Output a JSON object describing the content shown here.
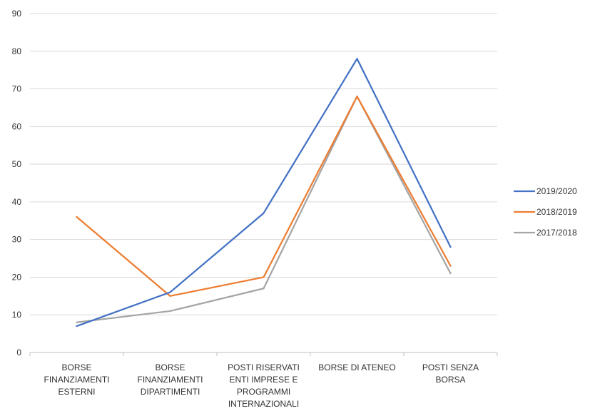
{
  "chart_data": {
    "type": "line",
    "categories": [
      [
        "BORSE",
        "FINANZIAMENTI",
        "ESTERNI"
      ],
      [
        "BORSE",
        "FINANZIAMENTI",
        "DIPARTIMENTI"
      ],
      [
        "POSTI RISERVATI",
        "ENTI IMPRESE E",
        "PROGRAMMI",
        "INTERNAZIONALI"
      ],
      [
        "BORSE DI ATENEO"
      ],
      [
        "POSTI SENZA",
        "BORSA"
      ]
    ],
    "series": [
      {
        "name": "2019/2020",
        "color": "#4472C4",
        "values": [
          7,
          16,
          37,
          78,
          28
        ]
      },
      {
        "name": "2018/2019",
        "color": "#ED7D31",
        "values": [
          36,
          15,
          20,
          68,
          23
        ]
      },
      {
        "name": "2017/2018",
        "color": "#A5A5A5",
        "values": [
          8,
          11,
          17,
          68,
          21
        ]
      }
    ],
    "ylim": [
      0,
      90
    ],
    "yticks": [
      0,
      10,
      20,
      30,
      40,
      50,
      60,
      70,
      80,
      90
    ],
    "grid": true,
    "legend_position": "right"
  }
}
